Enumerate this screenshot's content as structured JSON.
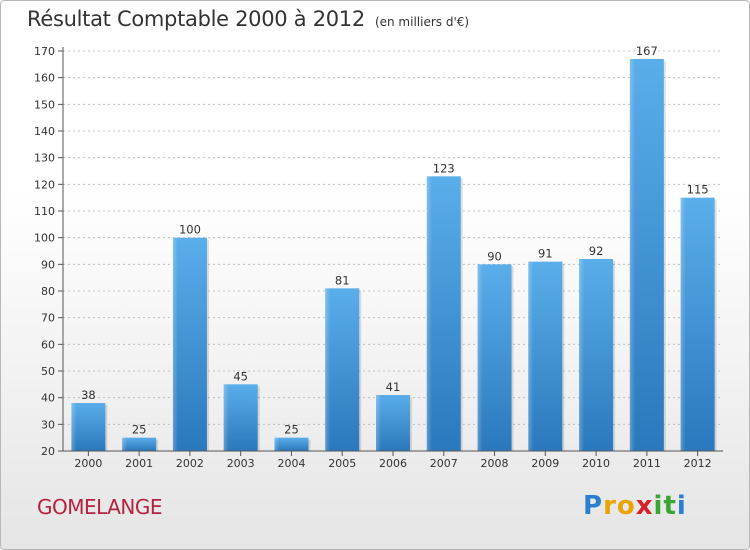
{
  "chart_data": {
    "type": "bar",
    "title": "Résultat Comptable 2000 à 2012",
    "subtitle": "(en milliers d'€)",
    "categories": [
      "2000",
      "2001",
      "2002",
      "2003",
      "2004",
      "2005",
      "2006",
      "2007",
      "2008",
      "2009",
      "2010",
      "2011",
      "2012"
    ],
    "values": [
      38,
      25,
      100,
      45,
      25,
      81,
      41,
      123,
      90,
      91,
      92,
      167,
      115
    ],
    "yticks": [
      20,
      30,
      40,
      50,
      60,
      70,
      80,
      90,
      100,
      110,
      120,
      130,
      140,
      150,
      160,
      170
    ],
    "ylim": [
      20,
      170
    ],
    "xlabel": "",
    "ylabel": "",
    "grid": true,
    "bar_color": "#3d8fd6"
  },
  "footer": {
    "commune": "GOMELANGE",
    "logo_letters": [
      "P",
      "r",
      "o",
      "x",
      "i",
      "t",
      "i"
    ],
    "logo_colors": [
      "#2a7fd0",
      "#e8a400",
      "#e8a400",
      "#d6202a",
      "#3aa535",
      "#3aa535",
      "#2a7fd0"
    ]
  }
}
